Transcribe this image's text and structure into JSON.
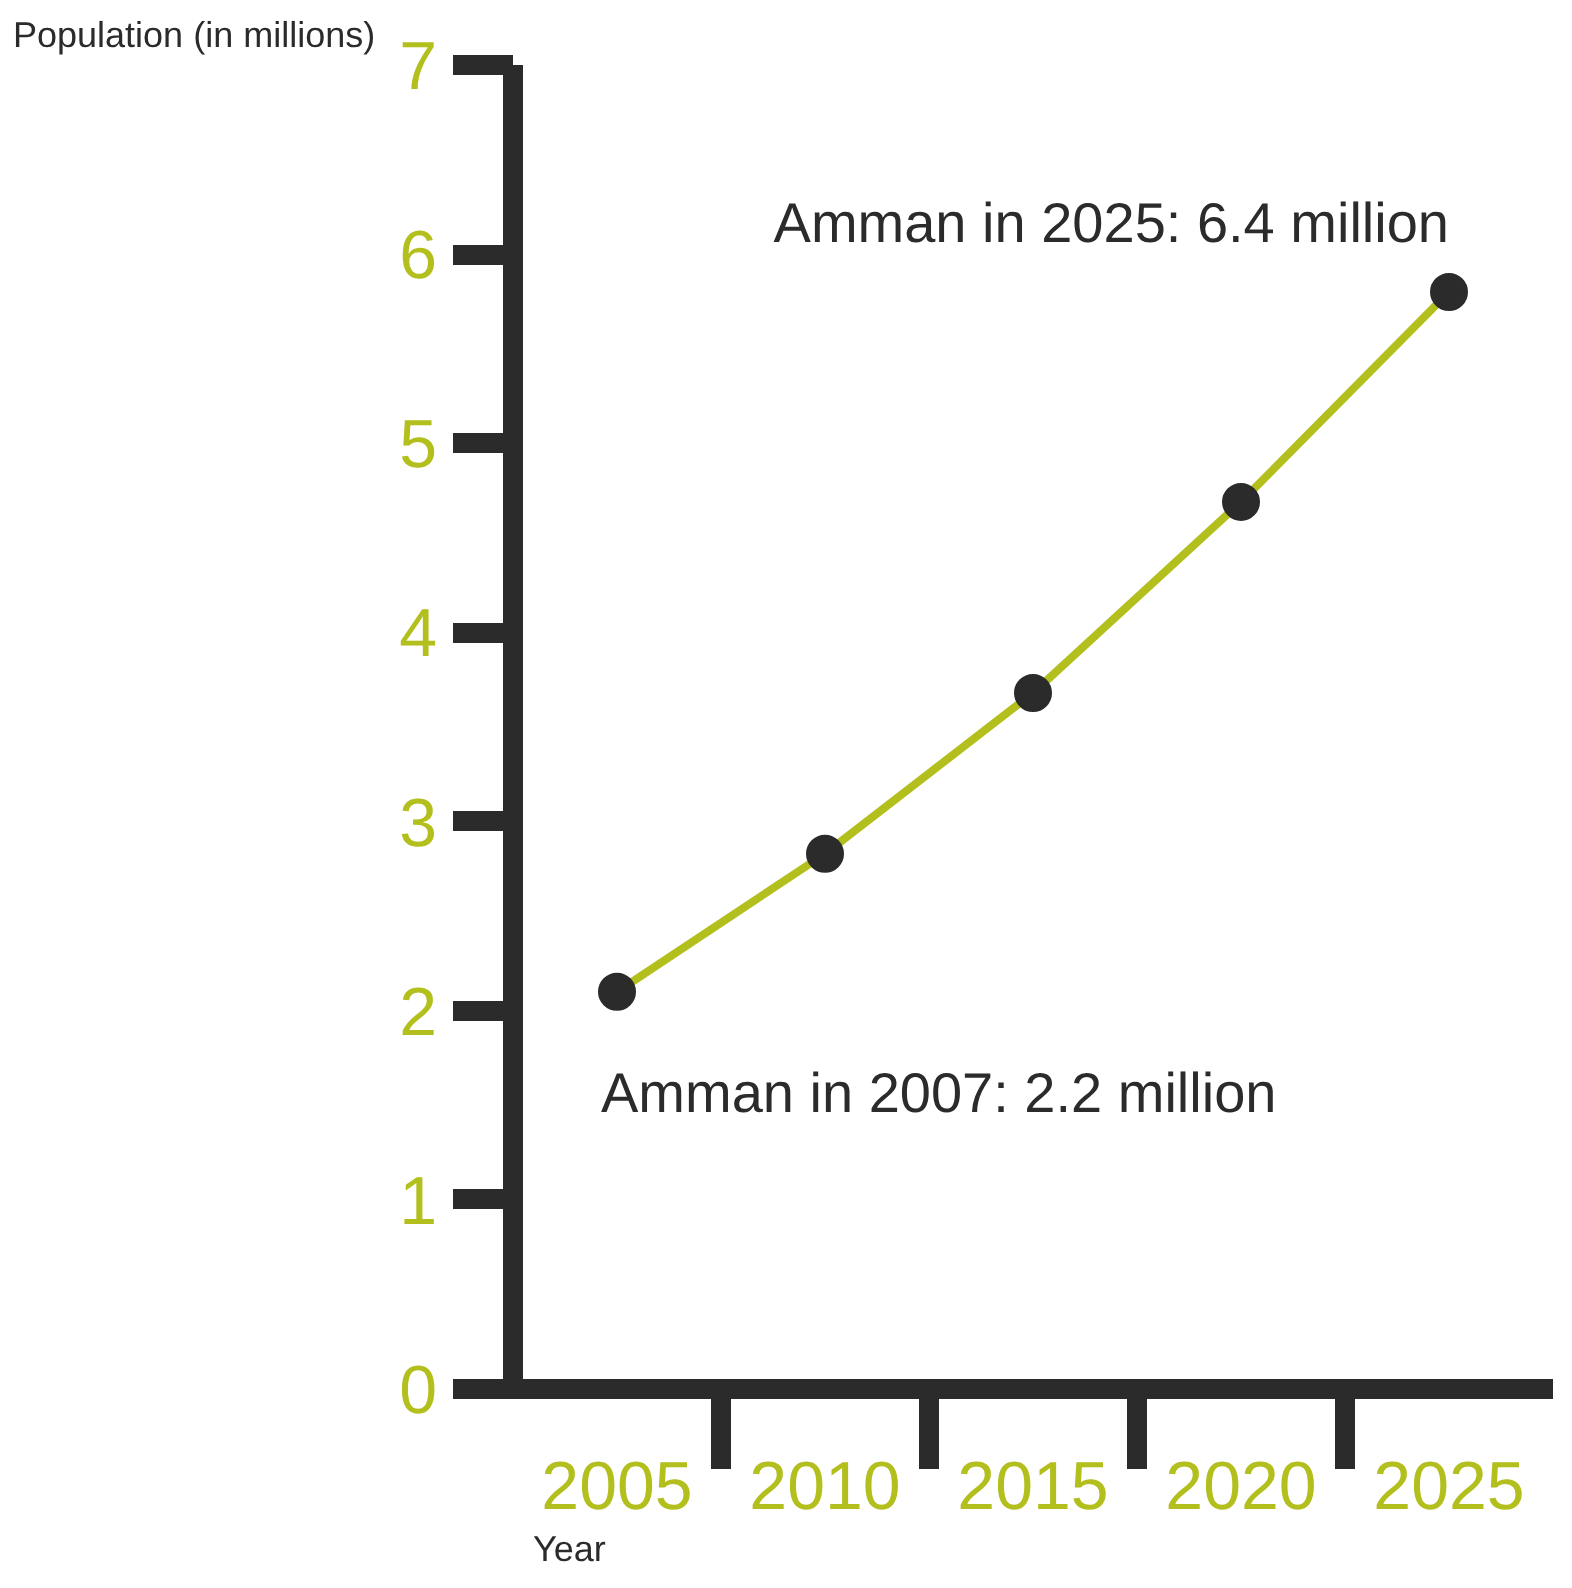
{
  "chart_data": {
    "type": "line",
    "categories": [
      "2005",
      "2010",
      "2015",
      "2020",
      "2025"
    ],
    "series": [
      {
        "color": "#b2bf1c",
        "values": [
          2.1,
          2.83,
          3.68,
          4.69,
          5.8
        ]
      }
    ],
    "ylim": [
      0,
      7
    ],
    "yticks": [
      0,
      1,
      2,
      3,
      4,
      5,
      6,
      7
    ],
    "ylabel": "Population (in millions)",
    "xlabel": "Year",
    "marker": "circle",
    "line_style": "solid",
    "grid": false,
    "annotations": [
      "Amman in 2025: 6.4 million",
      "Amman in 2007: 2.2 million"
    ]
  }
}
